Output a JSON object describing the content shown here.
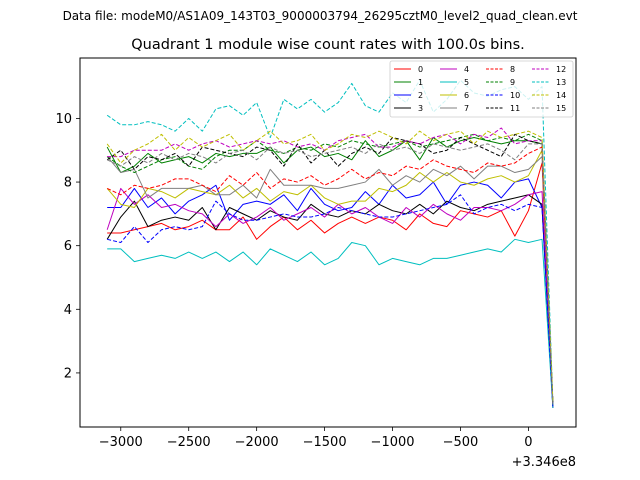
{
  "suptitle": "Data file: modeM0/AS1A09_143T03_9000003794_26295cztM0_level2_quad_clean.evt",
  "chart_data": {
    "type": "line",
    "title": "Quadrant 1 module wise count rates with 100.0s bins.",
    "xlabel": "",
    "ylabel": "",
    "x_offset_label": "+3.346e8",
    "xlim": [
      -3300,
      350
    ],
    "ylim": [
      0.3,
      11.9
    ],
    "xticks": [
      -3000,
      -2500,
      -2000,
      -1500,
      -1000,
      -500,
      0
    ],
    "xtick_labels": [
      "−3000",
      "−2500",
      "−2000",
      "−1500",
      "−1000",
      "−500",
      "0"
    ],
    "yticks": [
      2,
      4,
      6,
      8,
      10
    ],
    "ytick_labels": [
      "2",
      "4",
      "6",
      "8",
      "10"
    ],
    "x": [
      -3100,
      -3000,
      -2900,
      -2800,
      -2700,
      -2600,
      -2500,
      -2400,
      -2300,
      -2200,
      -2100,
      -2000,
      -1900,
      -1800,
      -1700,
      -1600,
      -1500,
      -1400,
      -1300,
      -1200,
      -1100,
      -1000,
      -900,
      -800,
      -700,
      -600,
      -500,
      -400,
      -300,
      -200,
      -100,
      0,
      100,
      180
    ],
    "legend": {
      "position": "upper right",
      "columns": 4
    },
    "series": [
      {
        "name": "0",
        "color": "#ff0000",
        "dash": "solid",
        "values": [
          6.4,
          6.4,
          6.5,
          6.6,
          6.7,
          6.5,
          6.6,
          6.8,
          6.5,
          6.5,
          6.9,
          6.2,
          6.6,
          6.9,
          6.5,
          6.8,
          6.4,
          6.7,
          6.9,
          6.7,
          6.9,
          6.8,
          6.5,
          7.0,
          6.7,
          6.6,
          7.1,
          7.0,
          6.9,
          7.1,
          6.3,
          7.1,
          8.6,
          0.9
        ]
      },
      {
        "name": "1",
        "color": "#008000",
        "dash": "solid",
        "values": [
          9.1,
          8.3,
          8.5,
          8.9,
          8.6,
          8.7,
          8.8,
          8.6,
          8.9,
          8.8,
          8.9,
          8.9,
          9.1,
          8.6,
          9.0,
          9.1,
          8.8,
          8.9,
          8.7,
          9.3,
          8.8,
          9.0,
          9.3,
          8.7,
          9.4,
          9.1,
          9.3,
          9.4,
          9.3,
          9.2,
          9.3,
          9.3,
          9.2,
          1.0
        ]
      },
      {
        "name": "2",
        "color": "#0000ff",
        "dash": "solid",
        "values": [
          7.2,
          7.2,
          7.8,
          7.2,
          7.5,
          7.0,
          7.4,
          7.6,
          7.9,
          6.8,
          7.3,
          7.4,
          7.3,
          7.6,
          7.1,
          7.8,
          7.3,
          7.1,
          7.2,
          7.7,
          7.3,
          7.9,
          7.5,
          7.6,
          8.0,
          7.3,
          7.9,
          8.0,
          7.9,
          7.5,
          8.0,
          8.1,
          7.2,
          0.9
        ]
      },
      {
        "name": "3",
        "color": "#000000",
        "dash": "solid",
        "values": [
          6.2,
          6.9,
          7.4,
          6.6,
          6.8,
          6.9,
          6.8,
          7.2,
          6.5,
          7.2,
          7.0,
          6.8,
          7.1,
          6.9,
          6.8,
          7.3,
          7.0,
          6.9,
          7.1,
          7.0,
          7.3,
          7.1,
          7.0,
          7.3,
          7.0,
          7.4,
          7.2,
          7.1,
          7.3,
          7.4,
          7.5,
          7.6,
          7.3,
          1.0
        ]
      },
      {
        "name": "4",
        "color": "#bf00bf",
        "dash": "solid",
        "values": [
          6.5,
          7.8,
          7.3,
          7.6,
          7.2,
          7.3,
          7.1,
          7.0,
          6.6,
          7.0,
          6.7,
          6.9,
          7.2,
          6.8,
          7.0,
          7.2,
          6.9,
          7.3,
          7.0,
          7.2,
          6.9,
          6.7,
          7.2,
          6.9,
          7.3,
          7.0,
          6.8,
          7.2,
          7.2,
          7.1,
          7.3,
          7.6,
          7.7,
          1.0
        ]
      },
      {
        "name": "5",
        "color": "#00bfbf",
        "dash": "solid",
        "values": [
          5.9,
          5.9,
          5.5,
          5.6,
          5.7,
          5.6,
          5.8,
          5.6,
          5.8,
          5.5,
          5.8,
          5.4,
          5.9,
          5.7,
          5.5,
          5.8,
          5.4,
          5.6,
          6.1,
          6.0,
          5.4,
          5.6,
          5.5,
          5.4,
          5.6,
          5.6,
          5.7,
          5.8,
          5.9,
          5.8,
          6.2,
          6.1,
          6.2,
          0.9
        ]
      },
      {
        "name": "6",
        "color": "#bfbf00",
        "dash": "solid",
        "values": [
          7.8,
          7.3,
          7.2,
          7.8,
          7.7,
          7.5,
          7.8,
          7.7,
          7.6,
          7.9,
          7.5,
          7.8,
          7.4,
          7.7,
          7.6,
          7.9,
          7.5,
          7.3,
          7.4,
          7.4,
          7.8,
          7.7,
          7.9,
          8.3,
          8.0,
          8.3,
          8.0,
          7.9,
          8.1,
          8.2,
          8.0,
          8.2,
          9.0,
          1.0
        ]
      },
      {
        "name": "7",
        "color": "#808080",
        "dash": "solid",
        "values": [
          8.8,
          8.3,
          8.4,
          7.5,
          7.8,
          7.8,
          7.8,
          7.9,
          7.6,
          7.6,
          7.9,
          7.5,
          8.4,
          7.9,
          7.9,
          7.9,
          7.8,
          7.8,
          7.9,
          8.0,
          8.4,
          7.9,
          8.2,
          8.0,
          8.4,
          8.2,
          8.5,
          8.1,
          8.5,
          8.5,
          8.3,
          8.4,
          8.8,
          1.0
        ]
      },
      {
        "name": "8",
        "color": "#ff0000",
        "dash": "dashed",
        "values": [
          7.8,
          7.6,
          7.9,
          7.8,
          7.9,
          8.1,
          8.1,
          7.9,
          7.7,
          8.2,
          7.9,
          8.3,
          7.8,
          8.1,
          8.0,
          8.2,
          7.9,
          8.1,
          8.4,
          8.1,
          8.3,
          8.2,
          8.5,
          8.4,
          8.7,
          8.5,
          8.4,
          8.3,
          8.6,
          8.5,
          8.6,
          8.9,
          9.1,
          1.0
        ]
      },
      {
        "name": "9",
        "color": "#008000",
        "dash": "dashed",
        "values": [
          8.8,
          8.5,
          8.3,
          8.5,
          8.7,
          8.8,
          8.5,
          8.4,
          8.8,
          9.0,
          9.0,
          9.3,
          9.0,
          8.9,
          9.1,
          9.0,
          9.2,
          9.1,
          9.3,
          9.2,
          9.1,
          9.2,
          9.3,
          9.1,
          9.2,
          9.3,
          9.4,
          9.5,
          9.3,
          9.4,
          9.3,
          9.5,
          9.3,
          1.0
        ]
      },
      {
        "name": "10",
        "color": "#0000ff",
        "dash": "dashed",
        "values": [
          6.2,
          6.1,
          6.6,
          6.1,
          6.5,
          6.6,
          6.5,
          6.6,
          7.4,
          7.0,
          6.8,
          6.8,
          6.9,
          7.0,
          6.9,
          6.9,
          7.0,
          7.2,
          7.1,
          7.0,
          6.9,
          6.9,
          7.0,
          7.1,
          7.2,
          7.3,
          7.6,
          7.0,
          7.2,
          7.3,
          7.1,
          7.3,
          7.2,
          0.9
        ]
      },
      {
        "name": "11",
        "color": "#000000",
        "dash": "dashed",
        "values": [
          8.7,
          9.0,
          8.4,
          8.8,
          8.7,
          8.9,
          8.5,
          9.1,
          9.0,
          8.9,
          8.8,
          9.1,
          9.0,
          8.5,
          9.2,
          8.6,
          9.0,
          8.5,
          8.9,
          9.1,
          8.9,
          9.4,
          9.3,
          9.2,
          8.9,
          9.0,
          9.4,
          9.2,
          9.0,
          8.8,
          9.5,
          9.3,
          9.2,
          1.0
        ]
      },
      {
        "name": "12",
        "color": "#bf00bf",
        "dash": "dashed",
        "values": [
          8.8,
          8.8,
          9.0,
          9.0,
          9.0,
          9.2,
          9.0,
          9.2,
          9.3,
          9.1,
          9.2,
          9.3,
          9.2,
          9.3,
          9.1,
          9.2,
          9.0,
          9.3,
          9.4,
          9.5,
          9.1,
          9.1,
          9.3,
          9.2,
          9.4,
          9.5,
          9.2,
          9.5,
          9.4,
          9.7,
          9.2,
          9.3,
          9.3,
          1.0
        ]
      },
      {
        "name": "13",
        "color": "#00bfbf",
        "dash": "dashed",
        "values": [
          10.1,
          9.8,
          9.8,
          9.9,
          9.8,
          9.6,
          10.0,
          9.6,
          10.3,
          10.4,
          10.1,
          10.5,
          9.4,
          10.6,
          10.3,
          10.6,
          10.2,
          10.5,
          11.1,
          10.4,
          10.2,
          10.8,
          10.5,
          11.2,
          10.2,
          10.6,
          11.2,
          10.8,
          10.7,
          10.9,
          11.0,
          10.6,
          11.0,
          1.0
        ]
      },
      {
        "name": "14",
        "color": "#bfbf00",
        "dash": "dashed",
        "values": [
          9.2,
          8.6,
          9.0,
          9.2,
          9.5,
          9.0,
          9.4,
          9.1,
          9.3,
          9.5,
          9.0,
          9.3,
          9.6,
          9.2,
          9.3,
          9.5,
          9.0,
          9.2,
          9.5,
          9.4,
          9.6,
          9.4,
          9.2,
          9.6,
          9.3,
          9.5,
          9.6,
          9.2,
          9.6,
          9.4,
          9.5,
          9.6,
          9.4,
          1.1
        ]
      },
      {
        "name": "15",
        "color": "#808080",
        "dash": "dashed",
        "values": [
          8.7,
          8.5,
          8.8,
          8.6,
          8.9,
          8.7,
          8.9,
          8.8,
          8.6,
          8.9,
          9.0,
          8.7,
          9.1,
          8.9,
          9.0,
          8.8,
          8.9,
          9.0,
          9.1,
          8.9,
          9.2,
          9.0,
          9.1,
          8.9,
          9.2,
          9.1,
          9.0,
          9.1,
          9.2,
          9.0,
          8.7,
          9.2,
          9.2,
          1.0
        ]
      }
    ]
  }
}
